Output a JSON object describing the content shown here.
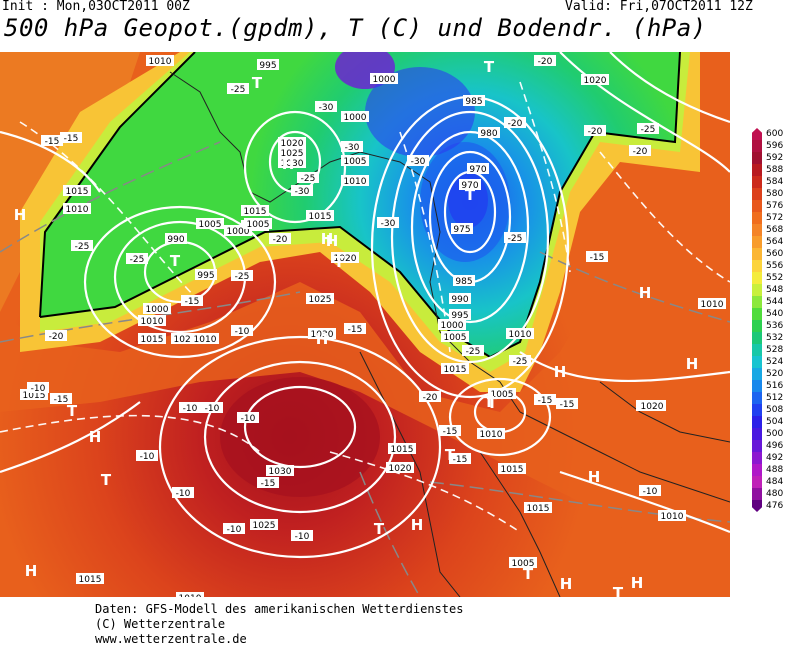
{
  "header": {
    "init": "Init : Mon,03OCT2011 00Z",
    "valid": "Valid: Fri,07OCT2011 12Z",
    "title": "500 hPa Geopot.(gpdm), T (C) und Bodendr. (hPa)"
  },
  "footer": {
    "line1": "Daten: GFS-Modell des amerikanischen Wetterdienstes",
    "line2": "(C) Wetterzentrale",
    "line3": "www.wetterzentrale.de"
  },
  "scale": [
    {
      "label": "600",
      "color": "#c01050"
    },
    {
      "label": "596",
      "color": "#b01040"
    },
    {
      "label": "592",
      "color": "#a01030"
    },
    {
      "label": "588",
      "color": "#b81a20"
    },
    {
      "label": "584",
      "color": "#cc2a1c"
    },
    {
      "label": "580",
      "color": "#dc401c"
    },
    {
      "label": "576",
      "color": "#e8581c"
    },
    {
      "label": "572",
      "color": "#f06e1e"
    },
    {
      "label": "568",
      "color": "#f48428"
    },
    {
      "label": "564",
      "color": "#f89c2c"
    },
    {
      "label": "560",
      "color": "#fbb634"
    },
    {
      "label": "556",
      "color": "#fcd43c"
    },
    {
      "label": "552",
      "color": "#f4ec3c"
    },
    {
      "label": "548",
      "color": "#c8f03c"
    },
    {
      "label": "544",
      "color": "#8ce83c"
    },
    {
      "label": "540",
      "color": "#50dc3c"
    },
    {
      "label": "536",
      "color": "#2cd050"
    },
    {
      "label": "532",
      "color": "#1cc878"
    },
    {
      "label": "528",
      "color": "#18c8a8"
    },
    {
      "label": "524",
      "color": "#18c4d0"
    },
    {
      "label": "520",
      "color": "#18a8e4"
    },
    {
      "label": "516",
      "color": "#1888ec"
    },
    {
      "label": "512",
      "color": "#1c64f0"
    },
    {
      "label": "508",
      "color": "#2040f0"
    },
    {
      "label": "504",
      "color": "#2c20e8"
    },
    {
      "label": "500",
      "color": "#4818e0"
    },
    {
      "label": "496",
      "color": "#6818d8"
    },
    {
      "label": "492",
      "color": "#8c18d0"
    },
    {
      "label": "488",
      "color": "#b018c8"
    },
    {
      "label": "484",
      "color": "#c020b8"
    },
    {
      "label": "480",
      "color": "#9010a0"
    },
    {
      "label": "476",
      "color": "#600080"
    }
  ],
  "map": {
    "pressure_labels": [
      "1010",
      "995",
      "1000",
      "1000",
      "985",
      "980",
      "970",
      "970",
      "975",
      "985",
      "990",
      "995",
      "1000",
      "1005",
      "1015",
      "1020",
      "1025",
      "1030",
      "1015",
      "1020",
      "1005",
      "1010",
      "1015",
      "1030",
      "1025",
      "1020",
      "1015",
      "1010",
      "1000",
      "1005",
      "1010",
      "1015",
      "1025",
      "1030",
      "1025",
      "1020",
      "1015",
      "1010",
      "1005",
      "1010",
      "1015",
      "1020",
      "990",
      "1000",
      "1005",
      "995",
      "1010",
      "1015",
      "1015",
      "1010",
      "1020",
      "1015",
      "1005",
      "1010",
      "1015",
      "1010",
      "1020"
    ],
    "temperature_labels": [
      "-25",
      "-15",
      "-30",
      "-30",
      "-20",
      "-25",
      "-20",
      "-25",
      "-30",
      "-30",
      "-30",
      "-20",
      "-25",
      "-15",
      "-25",
      "-20",
      "-10",
      "-15",
      "-10",
      "-10",
      "-10",
      "-10",
      "-10",
      "-10",
      "-15",
      "-15",
      "-25",
      "-20",
      "-15",
      "-15",
      "-25",
      "-15",
      "-20",
      "-10",
      "-10",
      "-15",
      "-25",
      "-10",
      "-15",
      "-15",
      "-25",
      "-20"
    ],
    "high_symbol": "H",
    "low_symbol": "T"
  }
}
